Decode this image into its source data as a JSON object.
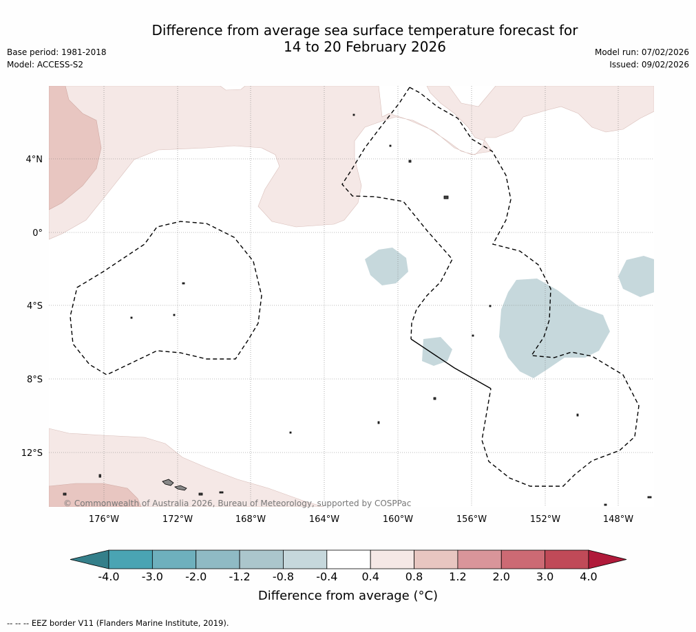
{
  "title_line1": "Difference from average sea surface temperature forecast for",
  "title_line2": "14 to 20 February 2026",
  "meta": {
    "base_period": "Base period: 1981-2018",
    "model": "Model: ACCESS-S2",
    "model_run": "Model run: 07/02/2026",
    "issued": "Issued: 09/02/2026"
  },
  "map": {
    "lat_labels": [
      "4°N",
      "0°",
      "4°S",
      "8°S",
      "12°S"
    ],
    "lon_labels": [
      "176°W",
      "172°W",
      "168°W",
      "164°W",
      "160°W",
      "156°W",
      "152°W",
      "148°W"
    ],
    "copyright": "© Commonwealth of Australia 2026, Bureau of Meteorology, supported by COSPPac"
  },
  "colorbar": {
    "ticks": [
      "-4.0",
      "-3.0",
      "-2.0",
      "-1.2",
      "-0.8",
      "-0.4",
      "0.4",
      "0.8",
      "1.2",
      "2.0",
      "3.0",
      "4.0"
    ],
    "colors": [
      "#4aa4b3",
      "#6eb0bd",
      "#8fbac4",
      "#abc6cc",
      "#c6d8dc",
      "#ffffff",
      "#f5e8e6",
      "#e8c6c1",
      "#d9959a",
      "#cc6a74",
      "#c04a58"
    ],
    "low_arrow_color": "#347f8a",
    "high_arrow_color": "#b01a3a",
    "title": "Difference from average (°C)"
  },
  "legend_note": "--  --  -- EEZ border V11 (Flanders Marine Institute, 2019).",
  "colors": {
    "warm_light": "#f5e8e6",
    "warm_medium": "#e8c6c1",
    "cool_light": "#c6d8dc"
  }
}
